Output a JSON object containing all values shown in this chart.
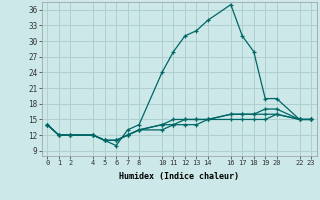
{
  "xlabel": "Humidex (Indice chaleur)",
  "bg_color": "#cce8e8",
  "grid_color": "#b0d0d0",
  "line_color": "#006666",
  "x_ticks": [
    0,
    1,
    2,
    4,
    5,
    6,
    7,
    8,
    10,
    11,
    12,
    13,
    14,
    16,
    17,
    18,
    19,
    20,
    22,
    23
  ],
  "y_ticks": [
    9,
    12,
    15,
    18,
    21,
    24,
    27,
    30,
    33,
    36
  ],
  "ylim": [
    8,
    37.5
  ],
  "xlim": [
    -0.5,
    23.5
  ],
  "series": [
    {
      "x": [
        0,
        1,
        2,
        4,
        5,
        6,
        7,
        8,
        10,
        11,
        12,
        13,
        14,
        16,
        17,
        18,
        19,
        20,
        22,
        23
      ],
      "y": [
        14,
        12,
        12,
        12,
        11,
        10,
        13,
        14,
        24,
        28,
        31,
        32,
        34,
        37,
        31,
        28,
        19,
        19,
        15,
        15
      ]
    },
    {
      "x": [
        0,
        1,
        2,
        4,
        5,
        6,
        7,
        8,
        10,
        11,
        12,
        13,
        14,
        16,
        17,
        18,
        19,
        20,
        22,
        23
      ],
      "y": [
        14,
        12,
        12,
        12,
        11,
        11,
        12,
        13,
        14,
        15,
        15,
        15,
        15,
        16,
        16,
        16,
        17,
        17,
        15,
        15
      ]
    },
    {
      "x": [
        0,
        1,
        2,
        4,
        5,
        6,
        7,
        8,
        10,
        11,
        12,
        13,
        14,
        16,
        17,
        18,
        19,
        20,
        22,
        23
      ],
      "y": [
        14,
        12,
        12,
        12,
        11,
        11,
        12,
        13,
        14,
        14,
        15,
        15,
        15,
        16,
        16,
        16,
        16,
        16,
        15,
        15
      ]
    },
    {
      "x": [
        0,
        1,
        2,
        4,
        5,
        6,
        7,
        8,
        10,
        11,
        12,
        13,
        14,
        16,
        17,
        18,
        19,
        20,
        22,
        23
      ],
      "y": [
        14,
        12,
        12,
        12,
        11,
        11,
        12,
        13,
        13,
        14,
        14,
        14,
        15,
        15,
        15,
        15,
        15,
        16,
        15,
        15
      ]
    }
  ]
}
